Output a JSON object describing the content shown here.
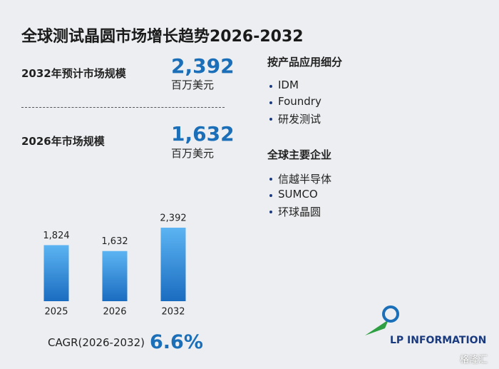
{
  "title": "全球测试晶圆市场增长趋势2026-2032",
  "stats": [
    {
      "label": "2032年预计市场规模",
      "value": "2,392",
      "unit": "百万美元"
    },
    {
      "label": "2026年市场规模",
      "value": "1,632",
      "unit": "百万美元"
    }
  ],
  "segments": {
    "title": "按产品应用细分",
    "items": [
      "IDM",
      "Foundry",
      "研发测试"
    ]
  },
  "companies": {
    "title": "全球主要企业",
    "items": [
      "信越半导体",
      "SUMCO",
      "环球晶圆"
    ]
  },
  "chart_data": {
    "type": "bar",
    "categories": [
      "2025",
      "2026",
      "2032"
    ],
    "values": [
      1824,
      1632,
      2392
    ],
    "value_labels": [
      "1,824",
      "1,632",
      "2,392"
    ],
    "color": "#1f7fd0"
  },
  "cagr": {
    "label": "CAGR(2026-2032)",
    "value": "6.6%"
  },
  "logo": "LP INFORMATION",
  "source": "格隆汇"
}
